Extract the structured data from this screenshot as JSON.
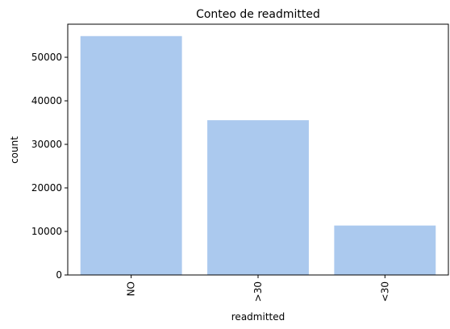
{
  "chart_data": {
    "type": "bar",
    "title": "Conteo de readmitted",
    "xlabel": "readmitted",
    "ylabel": "count",
    "categories": [
      "NO",
      ">30",
      "<30"
    ],
    "values": [
      54864,
      35545,
      11357
    ],
    "ylim": [
      0,
      57600
    ],
    "yticks": [
      0,
      10000,
      20000,
      30000,
      40000,
      50000
    ],
    "ytick_labels": [
      "0",
      "10000",
      "20000",
      "30000",
      "40000",
      "50000"
    ],
    "xtick_rotation": 90,
    "grid": false,
    "legend": "none",
    "bar_color": "#abc9ee"
  }
}
